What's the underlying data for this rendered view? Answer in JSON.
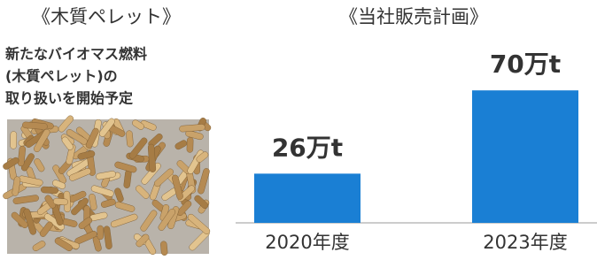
{
  "panel": {
    "title": "《木質ペレット》",
    "description": [
      "新たなバイオマス燃料",
      "(木質ペレット)の",
      "取り扱いを開始予定"
    ]
  },
  "chart_data": {
    "type": "bar",
    "title": "《当社販売計画》",
    "categories": [
      "2020年度",
      "2023年度"
    ],
    "values": [
      26,
      70
    ],
    "value_labels": [
      "26万t",
      "70万t"
    ],
    "color": "#1a7fd4"
  }
}
